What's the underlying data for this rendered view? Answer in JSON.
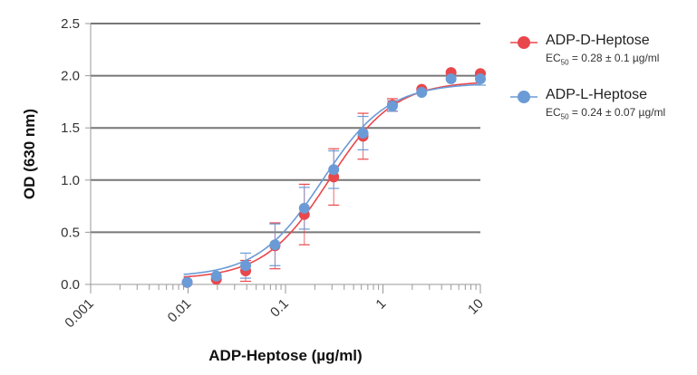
{
  "chart_data": {
    "type": "scatter",
    "xlabel": "ADP-Heptose (µg/ml)",
    "ylabel": "OD (630 nm)",
    "xscale": "log",
    "xlim": [
      0.001,
      10
    ],
    "ylim": [
      0,
      2.5
    ],
    "xticks": [
      "0.001",
      "0.01",
      "0.1",
      "1",
      "10"
    ],
    "yticks": [
      "0.0",
      "0.5",
      "1.0",
      "1.5",
      "2.0",
      "2.5"
    ],
    "grid": "horizontal",
    "legend_placement": "right",
    "series": [
      {
        "name": "ADP-D-Heptose",
        "color": "#e8474c",
        "ec50_label": "EC",
        "ec50_sub": "50",
        "ec50_text": " = 0.28 ± 0.1 µg/ml",
        "fit": {
          "bottom": 0.05,
          "top": 1.95,
          "ec50": 0.28,
          "hill": 1.3
        },
        "x": [
          0.0098,
          0.0195,
          0.039,
          0.078,
          0.156,
          0.3125,
          0.625,
          1.25,
          2.5,
          5,
          10
        ],
        "y": [
          0.02,
          0.05,
          0.13,
          0.37,
          0.67,
          1.03,
          1.42,
          1.72,
          1.87,
          2.03,
          2.02
        ],
        "err": [
          0,
          0,
          0.1,
          0.22,
          0.29,
          0.27,
          0.22,
          0.06,
          0,
          0,
          0
        ]
      },
      {
        "name": "ADP-L-Heptose",
        "color": "#6a9bd6",
        "ec50_label": "EC",
        "ec50_sub": "50",
        "ec50_text": " = 0.24 ± 0.07 µg/ml",
        "fit": {
          "bottom": 0.07,
          "top": 1.93,
          "ec50": 0.24,
          "hill": 1.3
        },
        "x": [
          0.0098,
          0.0195,
          0.039,
          0.078,
          0.156,
          0.3125,
          0.625,
          1.25,
          2.5,
          5,
          10
        ],
        "y": [
          0.02,
          0.08,
          0.18,
          0.38,
          0.73,
          1.1,
          1.45,
          1.71,
          1.84,
          1.97,
          1.97
        ],
        "err": [
          0,
          0,
          0.12,
          0.2,
          0.2,
          0.18,
          0.16,
          0.05,
          0,
          0,
          0.06
        ]
      }
    ]
  }
}
